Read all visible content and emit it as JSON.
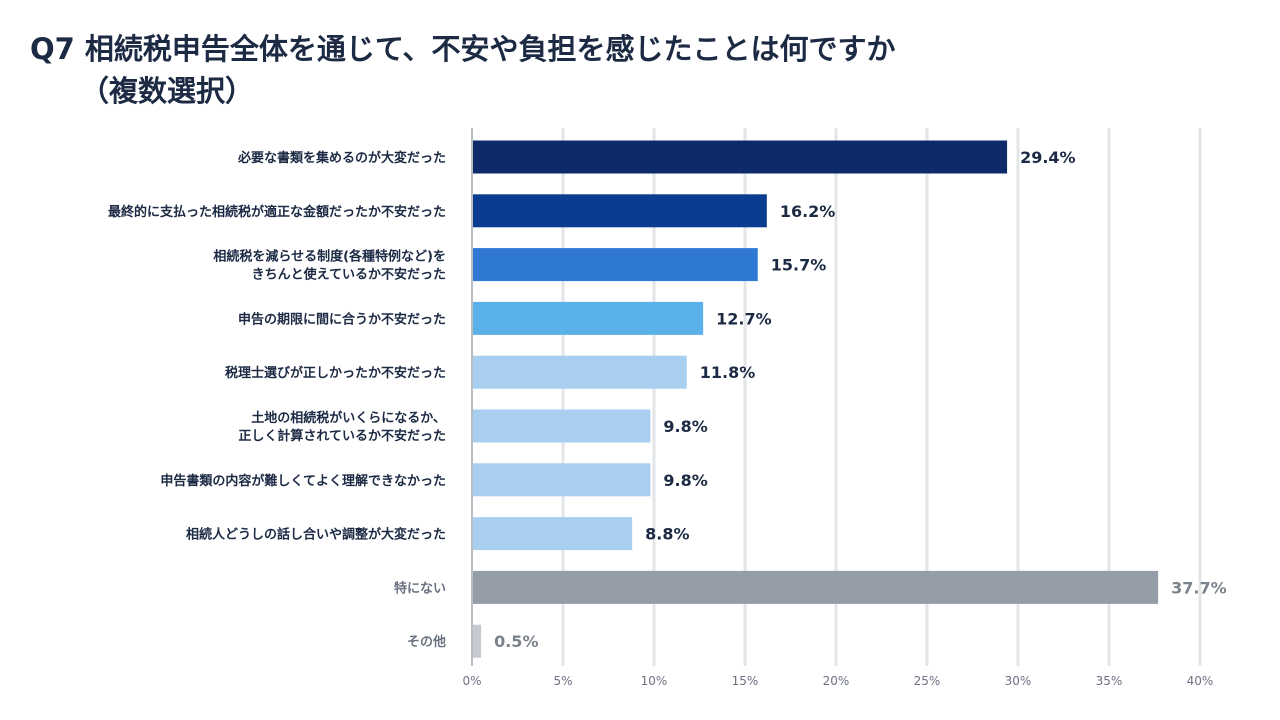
{
  "title": {
    "line1": "Q7  相続税申告全体を通じて、不安や負担を感じたことは何ですか",
    "line2": "（複数選択）"
  },
  "chart_data": {
    "type": "bar",
    "orientation": "horizontal",
    "title": "Q7  相続税申告全体を通じて、不安や負担を感じたことは何ですか（複数選択）",
    "categories": [
      [
        "必要な書類を集めるのが大変だった"
      ],
      [
        "最終的に支払った相続税が適正な金額だったか不安だった"
      ],
      [
        "相続税を減らせる制度(各種特例など)を",
        "きちんと使えているか不安だった"
      ],
      [
        "申告の期限に間に合うか不安だった"
      ],
      [
        "税理士選びが正しかったか不安だった"
      ],
      [
        "土地の相続税がいくらになるか、",
        "正しく計算されているか不安だった"
      ],
      [
        "申告書類の内容が難しくてよく理解できなかった"
      ],
      [
        "相続人どうしの話し合いや調整が大変だった"
      ],
      [
        "特にない"
      ],
      [
        "その他"
      ]
    ],
    "values": [
      29.4,
      16.2,
      15.7,
      12.7,
      11.8,
      9.8,
      9.8,
      8.8,
      37.7,
      0.5
    ],
    "value_labels": [
      "29.4%",
      "16.2%",
      "15.7%",
      "12.7%",
      "11.8%",
      "9.8%",
      "9.8%",
      "8.8%",
      "37.7%",
      "0.5%"
    ],
    "bar_colors": [
      "#0d2a6b",
      "#0a3d8f",
      "#2f78d4",
      "#5ab0e8",
      "#a9cff0",
      "#a9cff0",
      "#a9cff0",
      "#a9cff0",
      "#959ea8",
      "#c6cad0"
    ],
    "muted": [
      false,
      false,
      false,
      false,
      false,
      false,
      false,
      false,
      true,
      true
    ],
    "xlim": [
      0,
      40
    ],
    "x_ticks": [
      0,
      5,
      10,
      15,
      20,
      25,
      30,
      35,
      40
    ],
    "x_tick_labels": [
      "0%",
      "5%",
      "10%",
      "15%",
      "20%",
      "25%",
      "30%",
      "35%",
      "40%"
    ],
    "xlabel": "",
    "ylabel": "",
    "grid": true,
    "legend": false
  }
}
